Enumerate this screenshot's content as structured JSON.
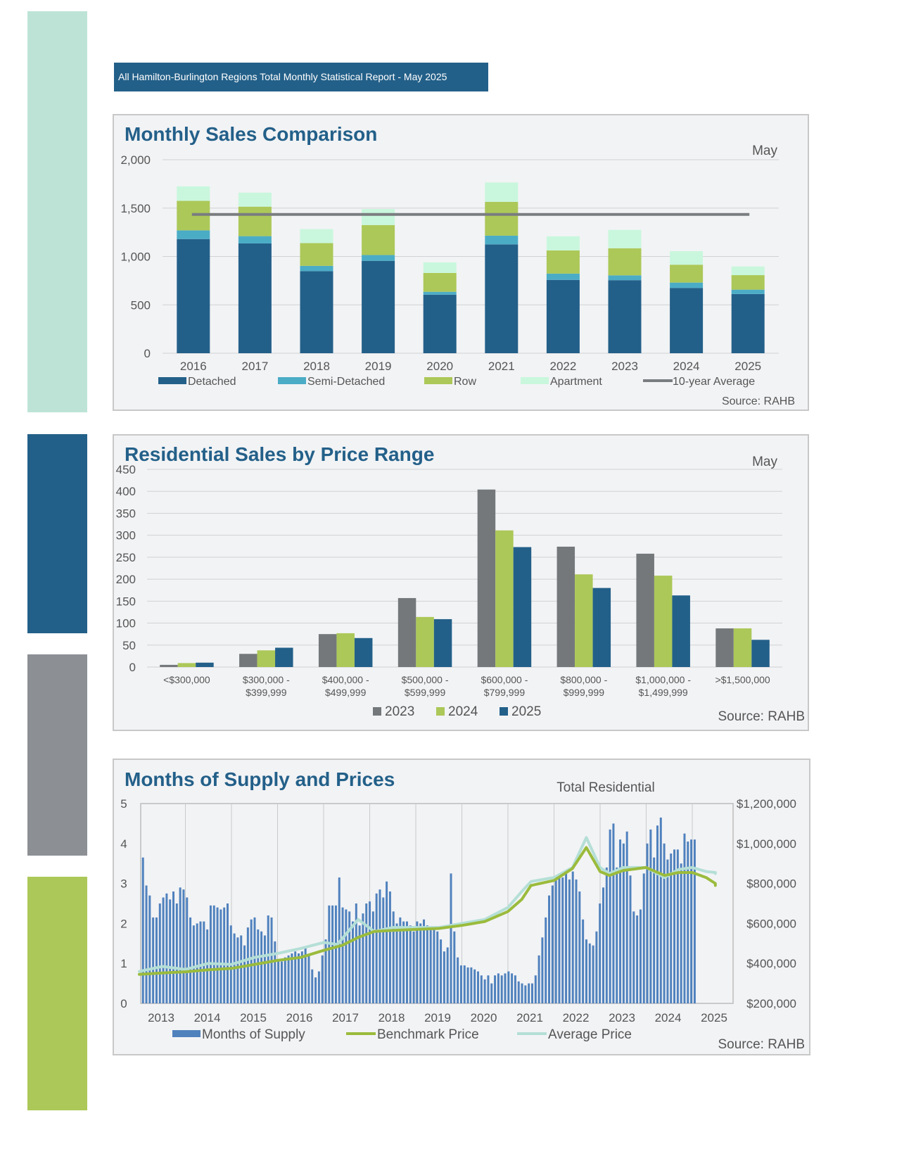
{
  "header": {
    "title": "All Hamilton-Burlington Regions Total Monthly Statistical Report - May 2025"
  },
  "colors": {
    "side_bars": [
      "#bde3d7",
      "#236089",
      "#8c8f93",
      "#acc858"
    ],
    "detached": "#236089",
    "semi_detached": "#4bacc6",
    "row": "#acc858",
    "apartment": "#c9f7dd",
    "avg_line": "#7a7d80",
    "y2023": "#75787b",
    "y2024": "#acc858",
    "y2025": "#236089",
    "supply": "#4f81bd",
    "benchmark": "#9bbb3c",
    "average": "#b4dfd6"
  },
  "chart_data": [
    {
      "type": "bar",
      "stacked": true,
      "title": "Monthly Sales Comparison",
      "subtitle": "May",
      "source": "Source: RAHB",
      "categories": [
        "2016",
        "2017",
        "2018",
        "2019",
        "2020",
        "2021",
        "2022",
        "2023",
        "2024",
        "2025"
      ],
      "series": [
        {
          "name": "Detached",
          "values": [
            1180,
            1135,
            848,
            955,
            605,
            1125,
            758,
            755,
            675,
            612
          ]
        },
        {
          "name": "Semi-Detached",
          "values": [
            90,
            75,
            55,
            60,
            30,
            90,
            65,
            50,
            55,
            45
          ]
        },
        {
          "name": "Row",
          "values": [
            305,
            305,
            235,
            310,
            195,
            350,
            240,
            280,
            185,
            150
          ]
        },
        {
          "name": "Apartment",
          "values": [
            150,
            145,
            145,
            165,
            110,
            200,
            145,
            190,
            140,
            90
          ]
        }
      ],
      "line": {
        "name": "10-year Average",
        "value": 1435
      },
      "yticks": [
        "2,000",
        "1,500",
        "1,000",
        "500",
        "0"
      ],
      "ylim": [
        0,
        2000
      ],
      "legend": "bottom"
    },
    {
      "type": "bar",
      "title": "Residential Sales by Price Range",
      "subtitle": "May",
      "source": "Source: RAHB",
      "categories": [
        [
          "<$300,000"
        ],
        [
          "$300,000 -",
          "$399,999"
        ],
        [
          "$400,000 -",
          "$499,999"
        ],
        [
          "$500,000 -",
          "$599,999"
        ],
        [
          "$600,000 -",
          "$799,999"
        ],
        [
          "$800,000 -",
          "$999,999"
        ],
        [
          "$1,000,000 -",
          "$1,499,999"
        ],
        [
          ">$1,500,000"
        ]
      ],
      "series": [
        {
          "name": "2023",
          "values": [
            5,
            30,
            75,
            157,
            404,
            274,
            258,
            88
          ]
        },
        {
          "name": "2024",
          "values": [
            9,
            38,
            77,
            114,
            311,
            211,
            208,
            88
          ]
        },
        {
          "name": "2025",
          "values": [
            10,
            44,
            66,
            109,
            273,
            180,
            163,
            62
          ]
        }
      ],
      "yticks": [
        "450",
        "400",
        "350",
        "300",
        "250",
        "200",
        "150",
        "100",
        "50",
        "0"
      ],
      "ylim": [
        0,
        450
      ],
      "legend": "bottom"
    },
    {
      "type": "bar+line",
      "title": "Months of Supply and Prices",
      "subtitle": "Total Residential",
      "source": "Source: RAHB",
      "x_labels": [
        "2013",
        "2014",
        "2015",
        "2016",
        "2017",
        "2018",
        "2019",
        "2020",
        "2021",
        "2022",
        "2023",
        "2024",
        "2025"
      ],
      "y_left_ticks": [
        "5",
        "4",
        "3",
        "2",
        "1",
        "0"
      ],
      "y_left_lim": [
        0,
        5
      ],
      "y_right_ticks": [
        "$1,200,000",
        "$1,000,000",
        "$800,000",
        "$600,000",
        "$400,000",
        "$200,000"
      ],
      "y_right_lim": [
        200000,
        1200000
      ],
      "bars": {
        "name": "Months of Supply",
        "values": [
          3.65,
          2.95,
          2.7,
          2.15,
          2.15,
          2.5,
          2.65,
          2.75,
          2.6,
          2.8,
          2.5,
          2.9,
          2.85,
          2.65,
          2.15,
          1.95,
          2.0,
          2.05,
          2.05,
          1.85,
          2.45,
          2.45,
          2.4,
          2.35,
          2.4,
          2.5,
          1.95,
          1.75,
          1.65,
          1.7,
          1.45,
          1.9,
          2.1,
          2.15,
          1.85,
          1.8,
          1.7,
          2.2,
          2.15,
          1.55,
          1.1,
          1.05,
          1.15,
          1.2,
          1.25,
          1.3,
          1.25,
          1.3,
          1.4,
          1.2,
          0.85,
          0.65,
          0.8,
          1.2,
          1.6,
          2.45,
          2.45,
          2.45,
          3.15,
          2.4,
          2.35,
          2.3,
          2.05,
          2.5,
          1.95,
          2.25,
          2.5,
          2.55,
          2.3,
          2.75,
          2.85,
          2.65,
          3.05,
          2.8,
          2.3,
          2.0,
          2.15,
          2.05,
          2.05,
          1.95,
          1.8,
          2.05,
          2.0,
          2.1,
          1.95,
          1.85,
          1.9,
          1.8,
          1.6,
          1.3,
          1.4,
          3.25,
          1.8,
          1.15,
          0.95,
          0.95,
          0.9,
          0.9,
          0.85,
          0.8,
          0.7,
          0.6,
          0.7,
          0.5,
          0.7,
          0.75,
          0.7,
          0.75,
          0.8,
          0.75,
          0.7,
          0.55,
          0.5,
          0.45,
          0.5,
          0.5,
          0.7,
          1.2,
          1.65,
          2.15,
          2.7,
          2.95,
          3.15,
          3.2,
          3.15,
          3.25,
          3.1,
          3.3,
          3.1,
          2.8,
          2.1,
          1.6,
          1.5,
          1.45,
          1.8,
          2.5,
          2.9,
          3.4,
          4.35,
          4.5,
          3.4,
          4.1,
          4.0,
          4.3,
          3.2,
          2.3,
          2.2,
          2.35,
          3.25,
          4.0,
          4.35,
          3.65,
          4.45,
          4.65,
          4.0,
          3.6,
          3.75,
          3.85,
          3.85,
          3.5,
          4.25,
          4.05,
          4.1,
          4.1
        ]
      },
      "lines": [
        {
          "name": "Benchmark Price",
          "points": [
            [
              2012.5,
              345000
            ],
            [
              2013,
              352000
            ],
            [
              2013.5,
              358000
            ],
            [
              2014,
              368000
            ],
            [
              2014.5,
              375000
            ],
            [
              2015,
              395000
            ],
            [
              2015.5,
              415000
            ],
            [
              2016,
              430000
            ],
            [
              2016.5,
              465000
            ],
            [
              2016.9,
              490000
            ],
            [
              2017.25,
              530000
            ],
            [
              2017.6,
              560000
            ],
            [
              2018,
              565000
            ],
            [
              2018.5,
              570000
            ],
            [
              2019,
              575000
            ],
            [
              2019.5,
              590000
            ],
            [
              2020,
              610000
            ],
            [
              2020.5,
              660000
            ],
            [
              2020.8,
              720000
            ],
            [
              2021,
              790000
            ],
            [
              2021.5,
              815000
            ],
            [
              2021.9,
              875000
            ],
            [
              2022.2,
              980000
            ],
            [
              2022.5,
              860000
            ],
            [
              2022.7,
              840000
            ],
            [
              2023,
              865000
            ],
            [
              2023.5,
              880000
            ],
            [
              2023.9,
              840000
            ],
            [
              2024.2,
              855000
            ],
            [
              2024.5,
              855000
            ],
            [
              2024.8,
              830000
            ],
            [
              2025,
              800000
            ],
            [
              2025,
              790000
            ]
          ]
        },
        {
          "name": "Average Price",
          "points": [
            [
              2012.5,
              360000
            ],
            [
              2013,
              385000
            ],
            [
              2013.5,
              370000
            ],
            [
              2014,
              400000
            ],
            [
              2014.5,
              395000
            ],
            [
              2015,
              430000
            ],
            [
              2015.5,
              450000
            ],
            [
              2016,
              475000
            ],
            [
              2016.5,
              505000
            ],
            [
              2016.8,
              495000
            ],
            [
              2017.25,
              620000
            ],
            [
              2017.6,
              560000
            ],
            [
              2018,
              580000
            ],
            [
              2018.5,
              580000
            ],
            [
              2019,
              580000
            ],
            [
              2019.5,
              600000
            ],
            [
              2020,
              620000
            ],
            [
              2020.5,
              680000
            ],
            [
              2020.8,
              760000
            ],
            [
              2021,
              810000
            ],
            [
              2021.5,
              830000
            ],
            [
              2021.9,
              880000
            ],
            [
              2022.2,
              1030000
            ],
            [
              2022.5,
              880000
            ],
            [
              2022.7,
              850000
            ],
            [
              2023,
              880000
            ],
            [
              2023.5,
              880000
            ],
            [
              2023.9,
              830000
            ],
            [
              2024.2,
              870000
            ],
            [
              2024.5,
              880000
            ],
            [
              2024.8,
              860000
            ],
            [
              2025,
              855000
            ],
            [
              2025,
              850000
            ]
          ]
        }
      ],
      "legend": "bottom"
    }
  ]
}
